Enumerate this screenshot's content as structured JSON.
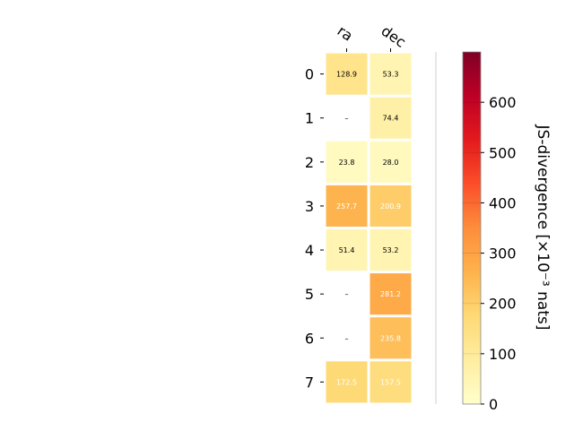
{
  "chart_data": {
    "type": "heatmap",
    "columns": [
      "ra",
      "dec"
    ],
    "rows": [
      "0",
      "1",
      "2",
      "3",
      "4",
      "5",
      "6",
      "7"
    ],
    "values": [
      [
        128.9,
        53.3
      ],
      [
        null,
        74.4
      ],
      [
        23.8,
        28.0
      ],
      [
        257.7,
        200.9
      ],
      [
        51.4,
        53.2
      ],
      [
        null,
        281.2
      ],
      [
        null,
        235.8
      ],
      [
        172.5,
        157.5
      ]
    ],
    "cell_labels": [
      [
        "128.9",
        "53.3"
      ],
      [
        "–",
        "74.4"
      ],
      [
        "23.8",
        "28.0"
      ],
      [
        "257.7",
        "200.9"
      ],
      [
        "51.4",
        "53.2"
      ],
      [
        "–",
        "281.2"
      ],
      [
        "–",
        "235.8"
      ],
      [
        "172.5",
        "157.5"
      ]
    ],
    "colorbar": {
      "label": "JS-divergence [×10⁻³ nats]",
      "min": 0,
      "max": 700,
      "ticks": [
        "0",
        "100",
        "200",
        "300",
        "400",
        "500",
        "600"
      ],
      "colormap": "YlOrRd",
      "stops": [
        "#ffffcc",
        "#ffeda0",
        "#fed976",
        "#feb24c",
        "#fd8d3c",
        "#fc4e2a",
        "#e31a1c",
        "#bd0026",
        "#800026"
      ]
    },
    "text_colors": {
      "dark": "#000000",
      "light": "#ffffff"
    }
  }
}
